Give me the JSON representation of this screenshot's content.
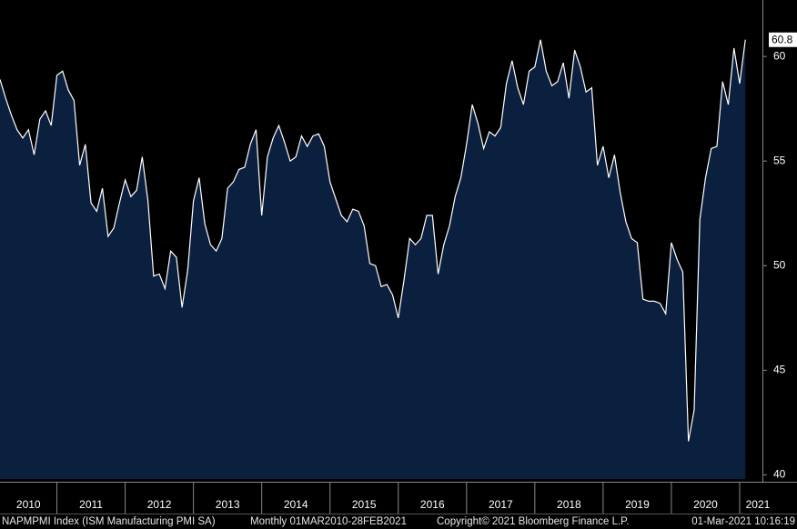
{
  "chart_data": {
    "type": "area",
    "series": [
      {
        "name": "NAPMPMI Index (ISM Manufacturing PMI SA)",
        "color": "#ffffff",
        "fill": "#0b1f3f",
        "values": [
          58.9,
          58.0,
          57.2,
          56.5,
          56.1,
          56.5,
          55.3,
          57.0,
          57.4,
          56.7,
          59.1,
          59.3,
          58.4,
          57.9,
          54.8,
          55.8,
          53.0,
          52.6,
          53.7,
          51.4,
          51.8,
          53.0,
          54.1,
          53.3,
          53.6,
          55.2,
          53.1,
          49.5,
          49.6,
          48.9,
          50.7,
          50.4,
          48.0,
          49.8,
          53.1,
          54.2,
          52.0,
          51.0,
          50.7,
          51.3,
          53.7,
          54.0,
          54.6,
          54.7,
          55.8,
          56.5,
          52.4,
          55.2,
          56.1,
          56.7,
          55.9,
          55.0,
          55.2,
          56.2,
          55.7,
          56.2,
          56.3,
          55.7,
          54.0,
          53.2,
          52.4,
          52.1,
          52.7,
          52.6,
          51.9,
          50.1,
          50.0,
          49.0,
          49.1,
          48.6,
          47.5,
          49.3,
          51.3,
          51.0,
          51.3,
          52.4,
          52.4,
          49.6,
          51.0,
          51.9,
          53.3,
          54.2,
          55.8,
          57.7,
          56.8,
          55.6,
          56.4,
          56.2,
          56.6,
          58.7,
          59.8,
          58.5,
          57.7,
          59.3,
          59.5,
          60.8,
          59.3,
          58.6,
          58.8,
          59.7,
          58.0,
          60.3,
          59.5,
          58.3,
          58.5,
          54.8,
          55.7,
          54.2,
          55.3,
          53.5,
          52.1,
          51.3,
          51.1,
          48.4,
          48.3,
          48.3,
          48.2,
          47.7,
          51.1,
          50.3,
          49.7,
          41.6,
          43.1,
          52.2,
          54.2,
          55.6,
          55.7,
          58.8,
          57.7,
          60.4,
          58.7,
          60.8
        ]
      }
    ],
    "x": [
      "2010-03",
      "2010-04",
      "2010-05",
      "2010-06",
      "2010-07",
      "2010-08",
      "2010-09",
      "2010-10",
      "2010-11",
      "2010-12",
      "2011-01",
      "2011-02",
      "2011-03",
      "2011-04",
      "2011-05",
      "2011-06",
      "2011-07",
      "2011-08",
      "2011-09",
      "2011-10",
      "2011-11",
      "2011-12",
      "2012-01",
      "2012-02",
      "2012-03",
      "2012-04",
      "2012-05",
      "2012-06",
      "2012-07",
      "2012-08",
      "2012-09",
      "2012-10",
      "2012-11",
      "2012-12",
      "2013-01",
      "2013-02",
      "2013-03",
      "2013-04",
      "2013-05",
      "2013-06",
      "2013-07",
      "2013-08",
      "2013-09",
      "2013-10",
      "2013-11",
      "2013-12",
      "2014-01",
      "2014-02",
      "2014-03",
      "2014-04",
      "2014-05",
      "2014-06",
      "2014-07",
      "2014-08",
      "2014-09",
      "2014-10",
      "2014-11",
      "2014-12",
      "2015-01",
      "2015-02",
      "2015-03",
      "2015-04",
      "2015-05",
      "2015-06",
      "2015-07",
      "2015-08",
      "2015-09",
      "2015-10",
      "2015-11",
      "2015-12",
      "2016-01",
      "2016-02",
      "2016-03",
      "2016-04",
      "2016-05",
      "2016-06",
      "2016-07",
      "2016-08",
      "2016-09",
      "2016-10",
      "2016-11",
      "2016-12",
      "2017-01",
      "2017-02",
      "2017-03",
      "2017-04",
      "2017-05",
      "2017-06",
      "2017-07",
      "2017-08",
      "2017-09",
      "2017-10",
      "2017-11",
      "2017-12",
      "2018-01",
      "2018-02",
      "2018-03",
      "2018-04",
      "2018-05",
      "2018-06",
      "2018-07",
      "2018-08",
      "2018-09",
      "2018-10",
      "2018-11",
      "2018-12",
      "2019-01",
      "2019-02",
      "2019-03",
      "2019-04",
      "2019-05",
      "2019-06",
      "2019-07",
      "2019-08",
      "2019-09",
      "2019-10",
      "2019-11",
      "2019-12",
      "2020-01",
      "2020-02",
      "2020-03",
      "2020-04",
      "2020-05",
      "2020-06",
      "2020-07",
      "2020-08",
      "2020-09",
      "2020-10",
      "2020-11",
      "2020-12",
      "2021-01",
      "2021-02"
    ],
    "xlim": [
      "2010-03",
      "2021-05"
    ],
    "xticks": [
      2010,
      2011,
      2012,
      2013,
      2014,
      2015,
      2016,
      2017,
      2018,
      2019,
      2020,
      2021
    ],
    "ylim": [
      39.8,
      62.7
    ],
    "yticks": [
      40,
      45,
      50,
      55,
      60
    ],
    "footer": {
      "ticker": "NAPMPMI Index (ISM Manufacturing PMI SA)",
      "range": "Monthly 01MAR2010-28FEB2021",
      "copyright": "Copyright© 2021 Bloomberg Finance L.P.",
      "timestamp": "01-Mar-2021 10:16:19"
    }
  }
}
